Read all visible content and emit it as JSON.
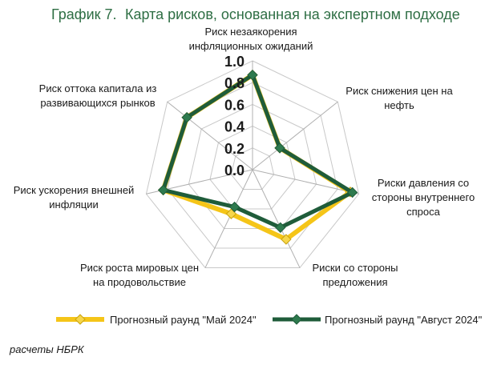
{
  "header": {
    "number": "График 7.",
    "title": "Карта рисков, основанная на экспертном подходе"
  },
  "chart_data": {
    "type": "radar",
    "title": "Карта рисков, основанная на экспертном подходе",
    "axes": [
      [
        "Риск незаякорения",
        "инфляционных ожиданий"
      ],
      [
        "Риск снижения цен на",
        "нефть"
      ],
      [
        "Риски давления со",
        "стороны внутреннего",
        "спроса"
      ],
      [
        "Риски со стороны",
        "предложения"
      ],
      [
        "Риск роста мировых цен",
        "на продовольствие"
      ],
      [
        "Риск ускорения внешней",
        "инфляции"
      ],
      [
        "Риск оттока капитала из",
        "развивающихся рынков"
      ]
    ],
    "ticks": [
      "0.0",
      "0.2",
      "0.4",
      "0.6",
      "0.8",
      "1.0"
    ],
    "range": [
      0,
      1
    ],
    "grid": true,
    "legend_position": "bottom",
    "series": [
      {
        "name": "Прогнозный раунд \"Май 2024\"",
        "color": "#f5c518",
        "marker": "diamond",
        "values": [
          0.87,
          0.32,
          0.92,
          0.71,
          0.45,
          0.84,
          0.77
        ]
      },
      {
        "name": "Прогнозный раунд \"Август 2024\"",
        "color": "#1f5c3a",
        "marker": "diamond",
        "values": [
          0.87,
          0.32,
          0.94,
          0.59,
          0.38,
          0.84,
          0.77
        ]
      }
    ]
  },
  "source": "расчеты НБРК"
}
